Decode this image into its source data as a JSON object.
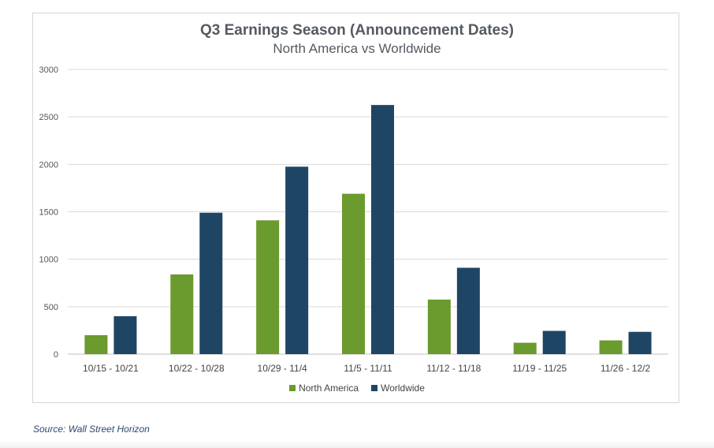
{
  "chart_data": {
    "type": "bar",
    "title": "Q3 Earnings Season (Announcement Dates)",
    "subtitle": "North America vs Worldwide",
    "xlabel": "",
    "ylabel": "",
    "categories": [
      "10/15 - 10/21",
      "10/22 - 10/28",
      "10/29 - 11/4",
      "11/5 - 11/11",
      "11/12 - 11/18",
      "11/19 - 11/25",
      "11/26 - 12/2"
    ],
    "series": [
      {
        "name": "North America",
        "color": "#6b9a2e",
        "values": [
          200,
          840,
          1410,
          1690,
          575,
          120,
          145
        ]
      },
      {
        "name": "Worldwide",
        "color": "#1f4564",
        "values": [
          400,
          1490,
          1975,
          2625,
          910,
          245,
          235
        ]
      }
    ],
    "ylim": [
      0,
      3000
    ],
    "yticks": [
      0,
      500,
      1000,
      1500,
      2000,
      2500,
      3000
    ],
    "grid": true,
    "legend_position": "bottom"
  },
  "source": "Source: Wall Street Horizon"
}
